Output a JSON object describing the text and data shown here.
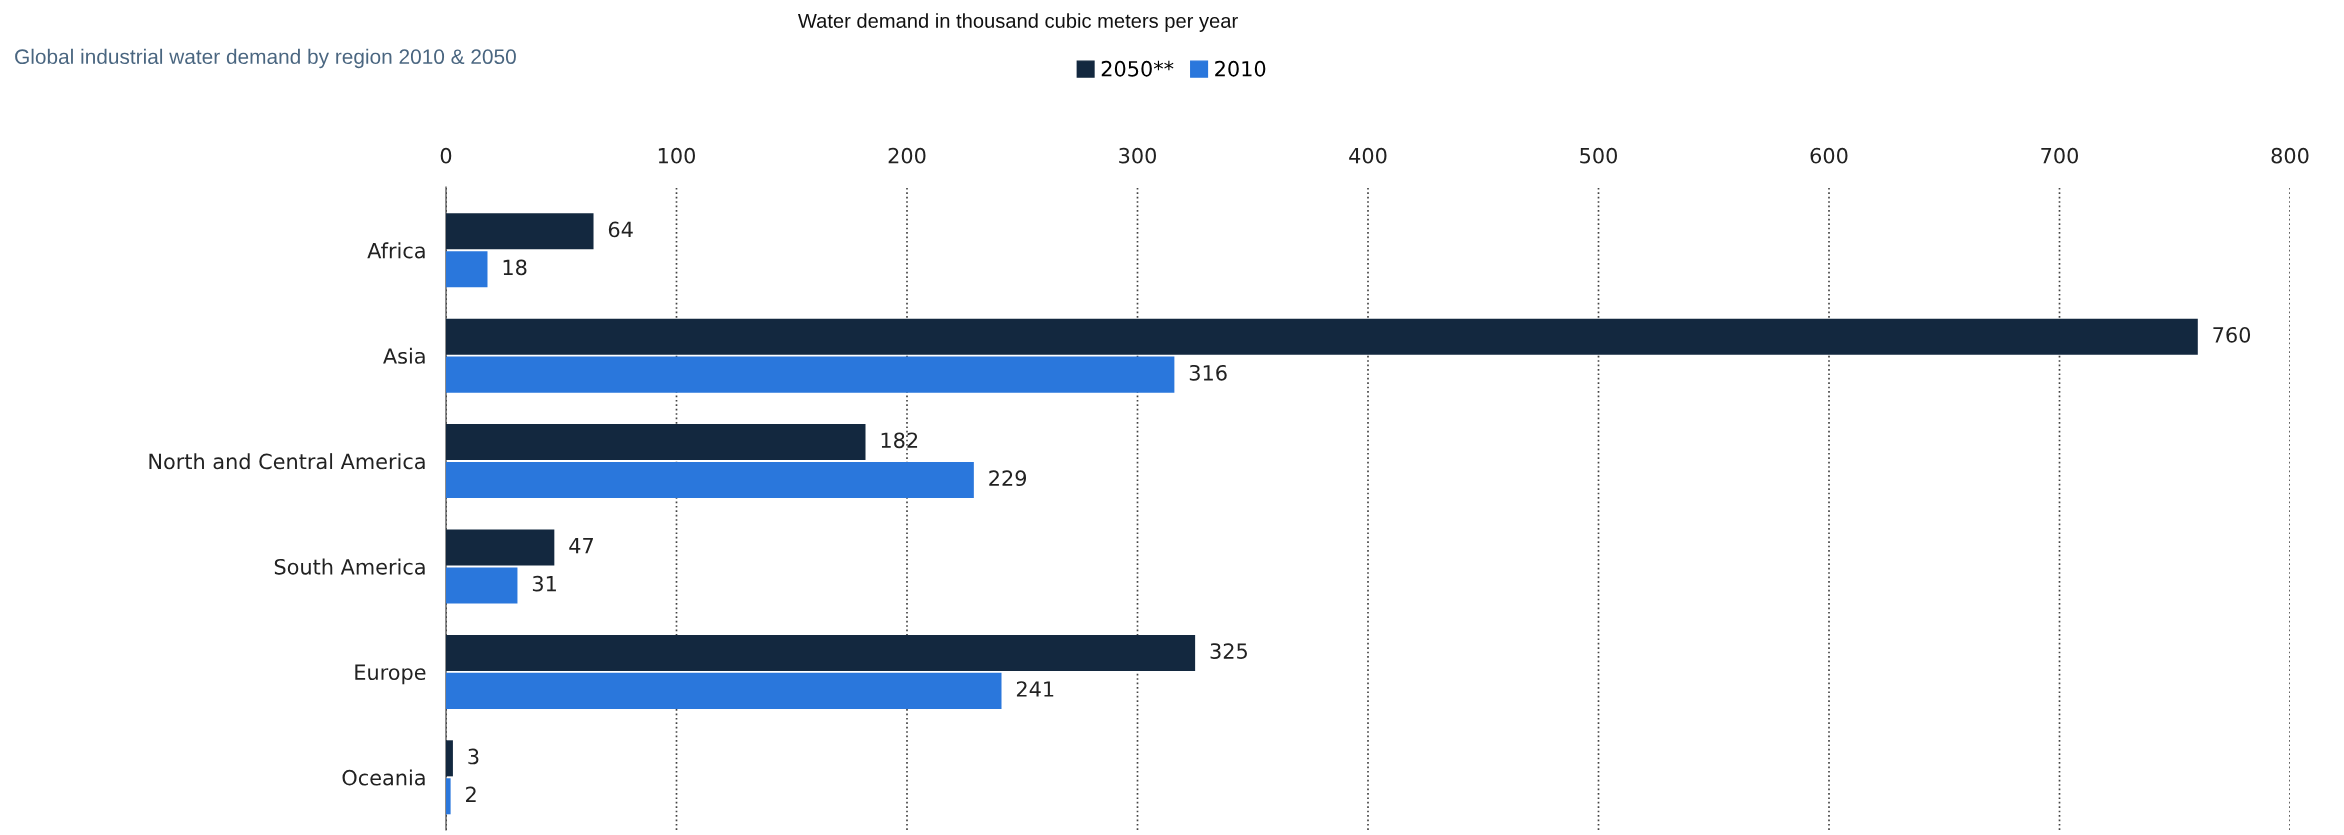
{
  "chart_data": {
    "type": "bar",
    "orientation": "horizontal",
    "title": "Global industrial water demand by region 2010 & 2050",
    "annotations": [
      "Water demand in thousand cubic meters per year"
    ],
    "categories": [
      "Africa",
      "Asia",
      "North and Central America",
      "South America",
      "Europe",
      "Oceania"
    ],
    "series": [
      {
        "name": "2050**",
        "color": "#13283f",
        "values": [
          64,
          760,
          182,
          47,
          325,
          3
        ]
      },
      {
        "name": "2010",
        "color": "#2a77dc",
        "values": [
          18,
          316,
          229,
          31,
          241,
          2
        ]
      }
    ],
    "xlim": [
      0,
      800
    ],
    "xticks": [
      0,
      100,
      200,
      300,
      400,
      500,
      600,
      700,
      800
    ],
    "grid": "x",
    "legend": "top",
    "data_labels": true
  }
}
